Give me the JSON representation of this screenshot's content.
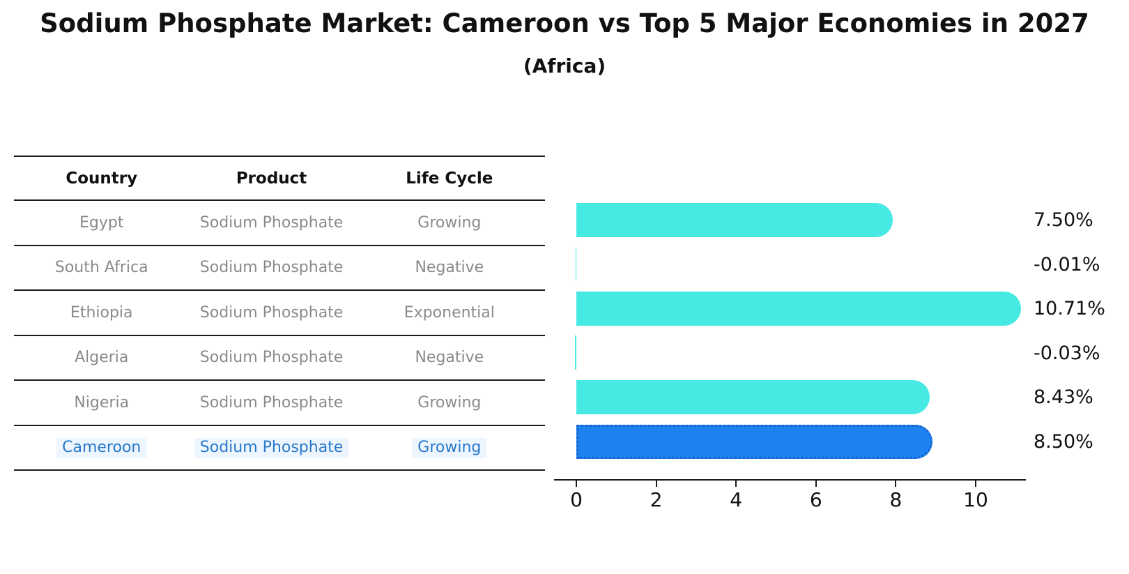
{
  "title": "Sodium Phosphate Market: Cameroon vs Top 5 Major Economies in 2027",
  "subtitle": "(Africa)",
  "table": {
    "headers": [
      "Country",
      "Product",
      "Life Cycle"
    ],
    "rows": [
      {
        "country": "Egypt",
        "product": "Sodium Phosphate",
        "life_cycle": "Growing",
        "highlight": false
      },
      {
        "country": "South Africa",
        "product": "Sodium Phosphate",
        "life_cycle": "Negative",
        "highlight": false
      },
      {
        "country": "Ethiopia",
        "product": "Sodium Phosphate",
        "life_cycle": "Exponential",
        "highlight": false
      },
      {
        "country": "Algeria",
        "product": "Sodium Phosphate",
        "life_cycle": "Negative",
        "highlight": false
      },
      {
        "country": "Nigeria",
        "product": "Sodium Phosphate",
        "life_cycle": "Growing",
        "highlight": false
      },
      {
        "country": "Cameroon",
        "product": "Sodium Phosphate",
        "life_cycle": "Growing",
        "highlight": true
      }
    ]
  },
  "chart_data": {
    "type": "bar",
    "orientation": "horizontal",
    "title": "Sodium Phosphate Market: Cameroon vs Top 5 Major Economies in 2027",
    "subtitle": "(Africa)",
    "categories": [
      "Egypt",
      "South Africa",
      "Ethiopia",
      "Algeria",
      "Nigeria",
      "Cameroon"
    ],
    "values": [
      7.5,
      -0.01,
      10.71,
      -0.03,
      8.43,
      8.5
    ],
    "value_labels": [
      "7.50%",
      "-0.01%",
      "10.71%",
      "-0.03%",
      "8.43%",
      "8.50%"
    ],
    "x_ticks": [
      "0",
      "2",
      "4",
      "6",
      "8",
      "10"
    ],
    "xlim": [
      -0.6,
      11.3
    ],
    "xlabel": "",
    "ylabel": "",
    "grid": false,
    "legend": false,
    "bar_color": "#47EAE2",
    "highlight_index": 5,
    "highlight_color": "#1E82F0",
    "highlight_border_color": "#1463CE",
    "axis_color": "#1a1a1a"
  }
}
